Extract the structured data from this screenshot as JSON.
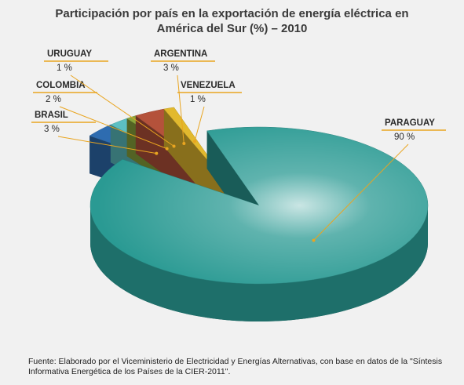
{
  "chart_data": {
    "type": "pie",
    "title": "Participación por país en la exportación de energía eléctrica en América del Sur (%) – 2010",
    "categories": [
      "PARAGUAY",
      "BRASIL",
      "COLOMBIA",
      "URUGUAY",
      "ARGENTINA",
      "VENEZUELA"
    ],
    "values": [
      90,
      3,
      2,
      1,
      3,
      1
    ],
    "value_labels": [
      "90 %",
      "3 %",
      "2 %",
      "1 %",
      "3 %",
      "1 %"
    ],
    "colors": [
      "#2a9a93",
      "#2e6cb0",
      "#5cbfc2",
      "#8aa53c",
      "#b4523b",
      "#e2b92e"
    ],
    "source": "Fuente: Elaborado por el Viceministerio de Electricidad y Energías Alternativas, con base en datos de la \"Síntesis Informativa Energética de los Países de la CIER-2011\"."
  }
}
